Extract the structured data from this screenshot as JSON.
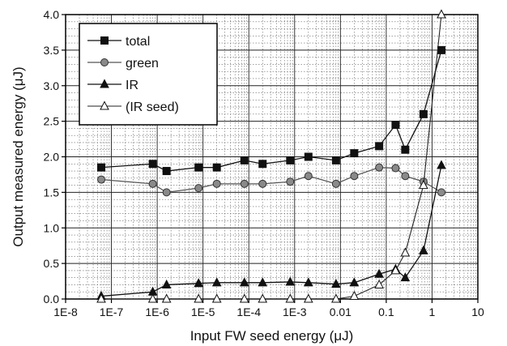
{
  "chart_data": {
    "type": "line",
    "xscale": "log",
    "xlim": [
      1e-08,
      10
    ],
    "ylim": [
      0.0,
      4.0
    ],
    "xlabel": "Input FW seed energy  (μJ)",
    "ylabel": "Output measured energy  (μJ)",
    "x_ticks": [
      "1E-8",
      "1E-7",
      "1E-6",
      "1E-5",
      "1E-4",
      "1E-3",
      "0.01",
      "0.1",
      "1",
      "10"
    ],
    "y_ticks": [
      "0.0",
      "0.5",
      "1.0",
      "1.5",
      "2.0",
      "2.5",
      "3.0",
      "3.5",
      "4.0"
    ],
    "grid": true,
    "legend_position": "top-left",
    "series": [
      {
        "name": "total",
        "marker": "filled-square",
        "points": [
          [
            6e-08,
            1.85
          ],
          [
            8e-07,
            1.9
          ],
          [
            1.6e-06,
            1.8
          ],
          [
            8e-06,
            1.85
          ],
          [
            2e-05,
            1.85
          ],
          [
            8e-05,
            1.95
          ],
          [
            0.0002,
            1.9
          ],
          [
            0.0008,
            1.95
          ],
          [
            0.002,
            2.0
          ],
          [
            0.008,
            1.95
          ],
          [
            0.02,
            2.05
          ],
          [
            0.07,
            2.15
          ],
          [
            0.16,
            2.45
          ],
          [
            0.26,
            2.1
          ],
          [
            0.65,
            2.6
          ],
          [
            1.6,
            3.5
          ]
        ]
      },
      {
        "name": "green",
        "marker": "filled-circle",
        "points": [
          [
            6e-08,
            1.68
          ],
          [
            8e-07,
            1.62
          ],
          [
            1.6e-06,
            1.5
          ],
          [
            8e-06,
            1.56
          ],
          [
            2e-05,
            1.62
          ],
          [
            8e-05,
            1.62
          ],
          [
            0.0002,
            1.62
          ],
          [
            0.0008,
            1.65
          ],
          [
            0.002,
            1.73
          ],
          [
            0.008,
            1.62
          ],
          [
            0.02,
            1.73
          ],
          [
            0.07,
            1.85
          ],
          [
            0.16,
            1.84
          ],
          [
            0.26,
            1.73
          ],
          [
            0.65,
            1.65
          ],
          [
            1.6,
            1.5
          ]
        ]
      },
      {
        "name": "IR",
        "marker": "filled-triangle",
        "points": [
          [
            6e-08,
            0.04
          ],
          [
            8e-07,
            0.1
          ],
          [
            1.6e-06,
            0.2
          ],
          [
            8e-06,
            0.22
          ],
          [
            2e-05,
            0.23
          ],
          [
            8e-05,
            0.23
          ],
          [
            0.0002,
            0.23
          ],
          [
            0.0008,
            0.24
          ],
          [
            0.002,
            0.23
          ],
          [
            0.008,
            0.21
          ],
          [
            0.02,
            0.23
          ],
          [
            0.07,
            0.35
          ],
          [
            0.16,
            0.42
          ],
          [
            0.26,
            0.3
          ],
          [
            0.65,
            0.68
          ],
          [
            1.6,
            1.88
          ]
        ]
      },
      {
        "name": "(IR seed)",
        "marker": "open-triangle",
        "points": [
          [
            6e-08,
            0.0
          ],
          [
            8e-07,
            0.0
          ],
          [
            1.6e-06,
            0.0
          ],
          [
            8e-06,
            0.0
          ],
          [
            2e-05,
            0.0
          ],
          [
            8e-05,
            0.0
          ],
          [
            0.0002,
            0.0
          ],
          [
            0.0008,
            0.0
          ],
          [
            0.002,
            0.0
          ],
          [
            0.008,
            0.0
          ],
          [
            0.02,
            0.04
          ],
          [
            0.07,
            0.2
          ],
          [
            0.16,
            0.4
          ],
          [
            0.26,
            0.65
          ],
          [
            0.65,
            1.6
          ],
          [
            1.6,
            4.0
          ]
        ]
      }
    ]
  }
}
